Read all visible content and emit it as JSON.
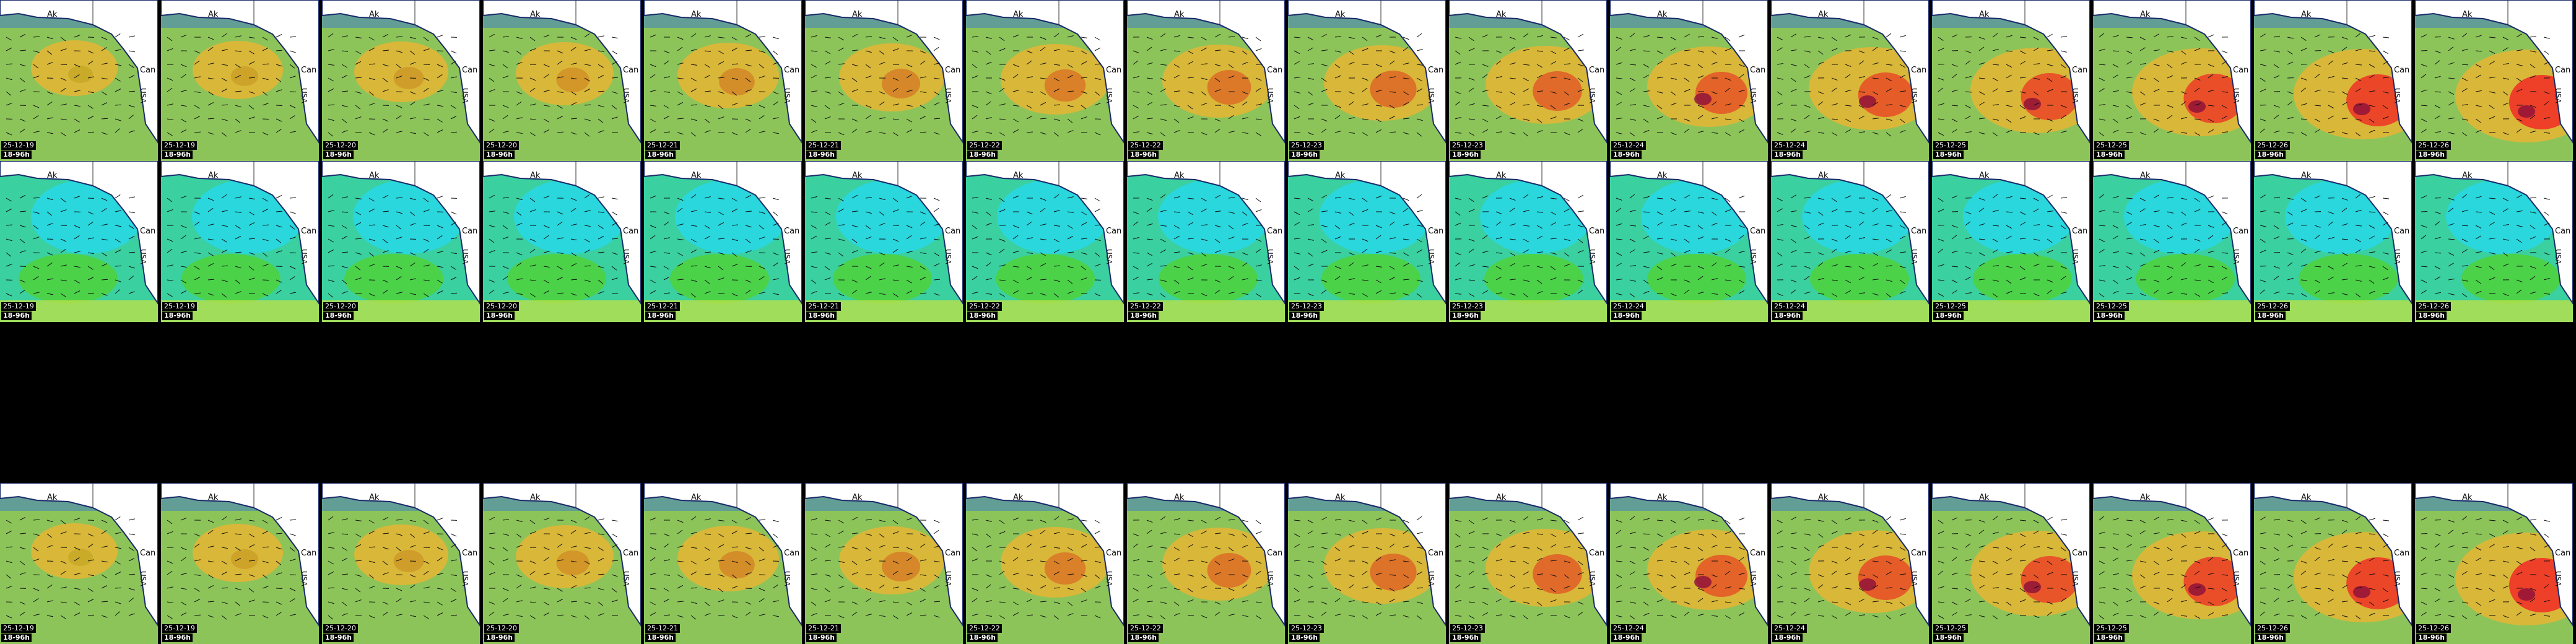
{
  "map_labels": {
    "alaska": "Ak",
    "canada": "Can",
    "usa": "USA"
  },
  "cycle_label": "18-96h",
  "dates": [
    "25-12-19",
    "25-12-19",
    "25-12-20",
    "25-12-20",
    "25-12-21",
    "25-12-21",
    "25-12-22",
    "25-12-22",
    "25-12-23",
    "25-12-23",
    "25-12-24",
    "25-12-24",
    "25-12-25",
    "25-12-25",
    "25-12-26",
    "25-12-26"
  ],
  "rows": [
    {
      "name": "wave-height-row",
      "palette": "warm"
    },
    {
      "name": "wave-period-row",
      "palette": "cool"
    },
    {
      "name": "empty-row",
      "palette": "none"
    },
    {
      "name": "wave-height-row-alt",
      "palette": "warm"
    }
  ],
  "colors": {
    "background": "#000000",
    "ocean_low": "#3aa37a",
    "ocean_mid": "#9ac54a",
    "storm": "#e83a1f",
    "storm_core": "#8b0f3a",
    "period_cyan": "#27d8e8",
    "period_green": "#4fd23a",
    "land": "#ffffff"
  }
}
